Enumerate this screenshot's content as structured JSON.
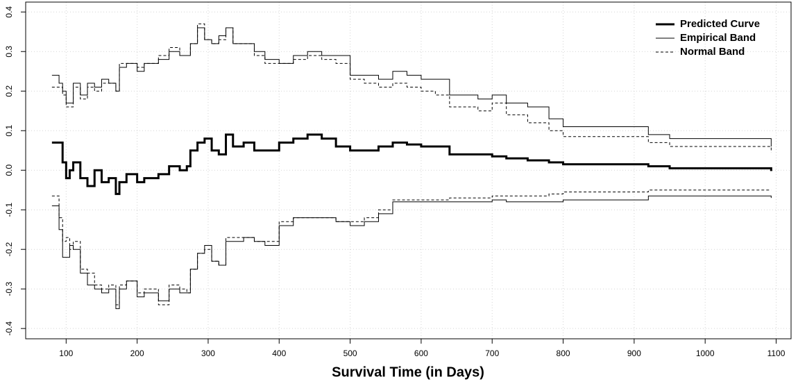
{
  "chart_data": {
    "type": "step",
    "xlabel": "Survival Time (in Days)",
    "xlim": [
      43,
      1121
    ],
    "ylim": [
      -0.426,
      0.425
    ],
    "xticks": [
      100,
      200,
      300,
      400,
      500,
      600,
      700,
      800,
      900,
      1000,
      1100
    ],
    "yticks": [
      -0.4,
      -0.3,
      -0.2,
      -0.1,
      {
        "value": 0,
        "label": "0.0"
      },
      0.1,
      0.2,
      0.3,
      0.4
    ],
    "grid": true,
    "legend": "topright",
    "x": [
      80,
      90,
      95,
      100,
      105,
      110,
      120,
      130,
      140,
      150,
      160,
      170,
      175,
      185,
      200,
      210,
      230,
      245,
      260,
      270,
      275,
      285,
      295,
      305,
      315,
      325,
      335,
      350,
      365,
      380,
      400,
      420,
      440,
      460,
      480,
      500,
      520,
      540,
      560,
      580,
      600,
      620,
      640,
      680,
      700,
      720,
      750,
      780,
      800,
      850,
      900,
      920,
      950,
      1000,
      1060,
      1093
    ],
    "series": [
      {
        "name": "Predicted Curve",
        "color": "#000000",
        "width": 3,
        "dashed": false,
        "values": [
          0.07,
          0.07,
          0.02,
          -0.02,
          0,
          0.02,
          -0.02,
          -0.04,
          0,
          -0.03,
          -0.02,
          -0.06,
          -0.03,
          -0.01,
          -0.03,
          -0.02,
          -0.01,
          0.01,
          0,
          0.01,
          0.05,
          0.07,
          0.08,
          0.05,
          0.04,
          0.09,
          0.06,
          0.07,
          0.05,
          0.05,
          0.07,
          0.08,
          0.09,
          0.08,
          0.06,
          0.05,
          0.05,
          0.06,
          0.07,
          0.065,
          0.06,
          0.06,
          0.04,
          0.04,
          0.035,
          0.03,
          0.025,
          0.02,
          0.015,
          0.015,
          0.015,
          0.01,
          0.005,
          0.005,
          0.005,
          -0.002
        ]
      },
      {
        "name": "Empirical Band",
        "color": "#000000",
        "width": 1,
        "dashed": false,
        "upper": [
          0.24,
          0.22,
          0.2,
          0.17,
          0.17,
          0.22,
          0.19,
          0.22,
          0.21,
          0.23,
          0.22,
          0.2,
          0.26,
          0.27,
          0.25,
          0.27,
          0.28,
          0.3,
          0.29,
          0.29,
          0.32,
          0.36,
          0.33,
          0.32,
          0.34,
          0.36,
          0.32,
          0.32,
          0.3,
          0.28,
          0.27,
          0.29,
          0.3,
          0.29,
          0.29,
          0.24,
          0.24,
          0.23,
          0.25,
          0.24,
          0.23,
          0.23,
          0.19,
          0.18,
          0.19,
          0.17,
          0.16,
          0.13,
          0.11,
          0.11,
          0.11,
          0.09,
          0.08,
          0.08,
          0.08,
          0.06
        ],
        "lower": [
          -0.09,
          -0.15,
          -0.22,
          -0.22,
          -0.19,
          -0.2,
          -0.26,
          -0.29,
          -0.3,
          -0.31,
          -0.3,
          -0.35,
          -0.3,
          -0.28,
          -0.32,
          -0.31,
          -0.33,
          -0.3,
          -0.31,
          -0.31,
          -0.25,
          -0.21,
          -0.19,
          -0.23,
          -0.24,
          -0.18,
          -0.18,
          -0.17,
          -0.18,
          -0.19,
          -0.14,
          -0.12,
          -0.12,
          -0.12,
          -0.13,
          -0.14,
          -0.13,
          -0.11,
          -0.08,
          -0.08,
          -0.08,
          -0.08,
          -0.08,
          -0.08,
          -0.075,
          -0.08,
          -0.08,
          -0.08,
          -0.075,
          -0.075,
          -0.075,
          -0.065,
          -0.065,
          -0.065,
          -0.065,
          -0.07
        ]
      },
      {
        "name": "Normal Band",
        "color": "#000000",
        "width": 1,
        "dashed": true,
        "upper": [
          0.21,
          0.21,
          0.19,
          0.16,
          0.16,
          0.21,
          0.18,
          0.21,
          0.2,
          0.22,
          0.22,
          0.2,
          0.27,
          0.27,
          0.26,
          0.27,
          0.29,
          0.31,
          0.29,
          0.29,
          0.32,
          0.37,
          0.33,
          0.32,
          0.33,
          0.36,
          0.32,
          0.32,
          0.29,
          0.27,
          0.27,
          0.28,
          0.29,
          0.28,
          0.27,
          0.23,
          0.22,
          0.21,
          0.22,
          0.21,
          0.2,
          0.19,
          0.16,
          0.15,
          0.17,
          0.14,
          0.12,
          0.1,
          0.085,
          0.085,
          0.085,
          0.07,
          0.06,
          0.06,
          0.06,
          0.045
        ],
        "lower": [
          -0.065,
          -0.12,
          -0.18,
          -0.17,
          -0.2,
          -0.18,
          -0.25,
          -0.26,
          -0.29,
          -0.3,
          -0.29,
          -0.34,
          -0.29,
          -0.28,
          -0.31,
          -0.3,
          -0.34,
          -0.29,
          -0.3,
          -0.31,
          -0.25,
          -0.21,
          -0.2,
          -0.23,
          -0.24,
          -0.17,
          -0.17,
          -0.17,
          -0.18,
          -0.18,
          -0.13,
          -0.12,
          -0.12,
          -0.12,
          -0.13,
          -0.13,
          -0.12,
          -0.1,
          -0.075,
          -0.075,
          -0.075,
          -0.075,
          -0.07,
          -0.07,
          -0.065,
          -0.065,
          -0.065,
          -0.06,
          -0.055,
          -0.055,
          -0.055,
          -0.05,
          -0.05,
          -0.05,
          -0.05,
          -0.05
        ]
      }
    ]
  }
}
